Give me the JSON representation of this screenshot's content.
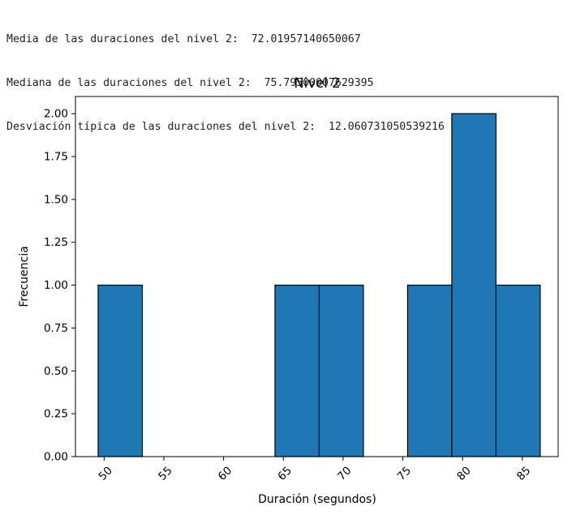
{
  "output_lines": [
    "Media de las duraciones del nivel 2:  72.01957140650067",
    "Mediana de las duraciones del nivel 2:  75.79500007629395",
    "Desviación típica de las duraciones del nivel 2:  12.060731050539216"
  ],
  "colors": {
    "bar_fill": "#1f77b4",
    "bar_edge": "#000000",
    "axes": "#000000",
    "text": "#1f1f1f"
  },
  "chart_data": {
    "type": "bar",
    "title": "Nivel 2",
    "xlabel": "Duración (segundos)",
    "ylabel": "Frecuencia",
    "xlim": [
      47.6,
      88.0
    ],
    "ylim": [
      0,
      2.1
    ],
    "x_ticks": [
      50,
      55,
      60,
      65,
      70,
      75,
      80,
      85
    ],
    "x_tick_labels": [
      "50",
      "55",
      "60",
      "65",
      "70",
      "75",
      "80",
      "85"
    ],
    "x_tick_rotation": 45,
    "y_ticks": [
      0,
      0.25,
      0.5,
      0.75,
      1.0,
      1.25,
      1.5,
      1.75,
      2.0
    ],
    "y_tick_labels": [
      "0.00",
      "0.25",
      "0.50",
      "0.75",
      "1.00",
      "1.25",
      "1.50",
      "1.75",
      "2.00"
    ],
    "grid": false,
    "legend": false,
    "bins": [
      {
        "start": 49.5,
        "end": 53.2,
        "count": 1
      },
      {
        "start": 53.2,
        "end": 56.9,
        "count": 0
      },
      {
        "start": 56.9,
        "end": 60.6,
        "count": 0
      },
      {
        "start": 60.6,
        "end": 64.3,
        "count": 0
      },
      {
        "start": 64.3,
        "end": 68.0,
        "count": 1
      },
      {
        "start": 68.0,
        "end": 71.7,
        "count": 1
      },
      {
        "start": 71.7,
        "end": 75.4,
        "count": 0
      },
      {
        "start": 75.4,
        "end": 79.1,
        "count": 1
      },
      {
        "start": 79.1,
        "end": 82.8,
        "count": 2
      },
      {
        "start": 82.8,
        "end": 86.5,
        "count": 1
      }
    ]
  }
}
